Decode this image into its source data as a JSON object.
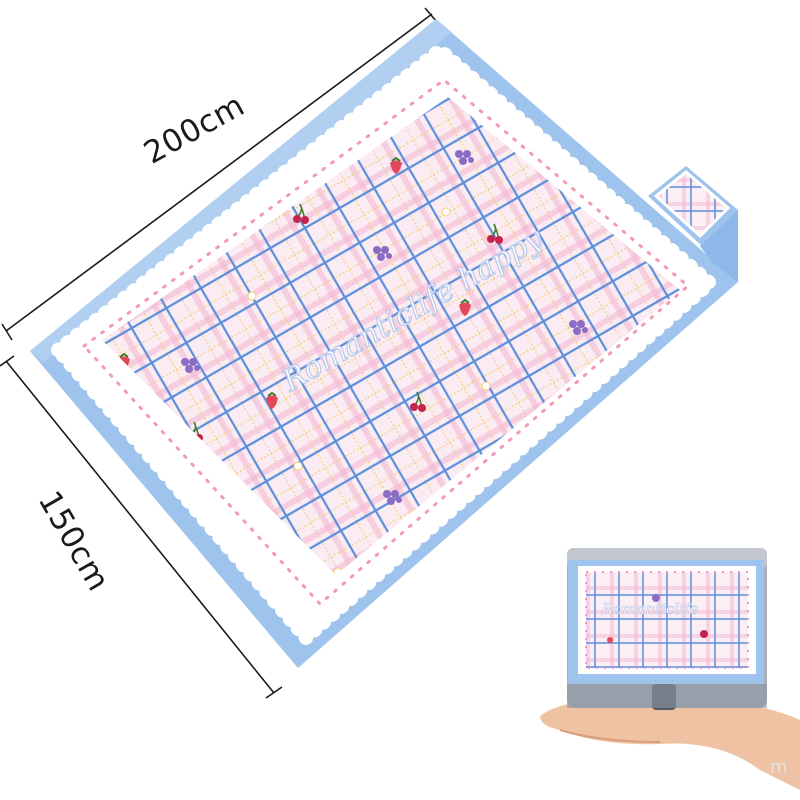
{
  "dimensions": {
    "length_label": "200cm",
    "width_label": "150cm"
  },
  "mat": {
    "brand_text": "Romanticlife happy",
    "border_color": "#9ec3ec",
    "scallop_color": "#ffffff",
    "field_color": "#fbecf3",
    "plaid_line_color": "#5b8fdc",
    "plaid_accent_color": "#f1b6cf",
    "motifs": [
      "cherry-icon",
      "strawberry-icon",
      "grape-icon",
      "daisy-icon"
    ]
  },
  "folded_pouch": {
    "brand_text": "Romanticlife"
  },
  "watermark": "m",
  "colors": {
    "skin": "#f0c2a4",
    "pouch_grey": "#aab0ba"
  }
}
